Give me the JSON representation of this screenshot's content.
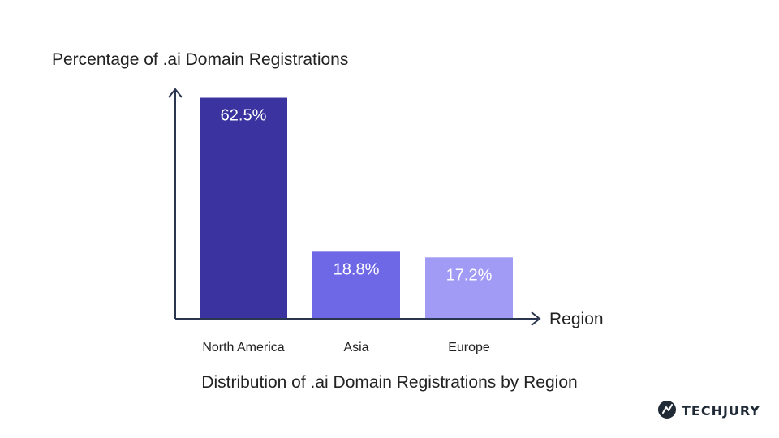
{
  "chart_data": {
    "type": "bar",
    "ylabel": "Percentage of .ai Domain Registrations",
    "xlabel": "Region",
    "caption": "Distribution of .ai Domain Registrations by Region",
    "categories": [
      "North America",
      "Asia",
      "Europe"
    ],
    "values": [
      62.5,
      18.8,
      17.2
    ],
    "data_labels": [
      "62.5%",
      "18.8%",
      "17.2%"
    ],
    "ylim": [
      0,
      64
    ],
    "grid": false,
    "legend": "none",
    "colors": [
      "#3a33a0",
      "#6e67e6",
      "#a29bf6"
    ]
  },
  "brand": {
    "name": "TECHJURY",
    "colors": {
      "text": "#1f2a36",
      "icon": "#1f2a36"
    }
  },
  "colors": {
    "axis": "#2a3550",
    "text": "#222222",
    "bar_label": "#ffffff"
  }
}
